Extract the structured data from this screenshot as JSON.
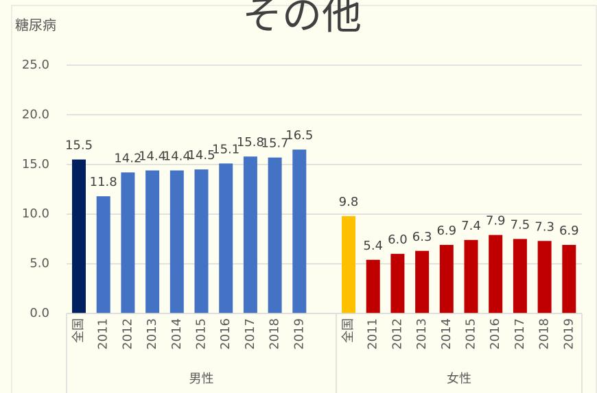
{
  "chart_data": {
    "type": "bar",
    "title": "その他",
    "y_label": "糖尿病",
    "categories": [
      "全国",
      "2011",
      "2012",
      "2013",
      "2014",
      "2015",
      "2016",
      "2017",
      "2018",
      "2019"
    ],
    "series": [
      {
        "name": "男性",
        "colors": [
          "#002060",
          "#4472c4",
          "#4472c4",
          "#4472c4",
          "#4472c4",
          "#4472c4",
          "#4472c4",
          "#4472c4",
          "#4472c4",
          "#4472c4"
        ],
        "values": [
          15.5,
          11.8,
          14.2,
          14.4,
          14.4,
          14.5,
          15.1,
          15.8,
          15.7,
          16.5
        ],
        "value_labels": [
          "15.5",
          "11.8",
          "14.2",
          "14.4",
          "14.4",
          "14.5",
          "15.1",
          "15.8",
          "15.7",
          "16.5"
        ]
      },
      {
        "name": "女性",
        "colors": [
          "#ffc000",
          "#c00000",
          "#c00000",
          "#c00000",
          "#c00000",
          "#c00000",
          "#c00000",
          "#c00000",
          "#c00000",
          "#c00000"
        ],
        "values": [
          9.8,
          5.4,
          6.0,
          6.3,
          6.9,
          7.4,
          7.9,
          7.5,
          7.3,
          6.9
        ],
        "value_labels": [
          "9.8",
          "5.4",
          "6.0",
          "6.3",
          "6.9",
          "7.4",
          "7.9",
          "7.5",
          "7.3",
          "6.9"
        ]
      }
    ],
    "ylim": [
      0,
      25
    ],
    "yticks": [
      {
        "value": 0,
        "label": "0.0"
      },
      {
        "value": 5,
        "label": "5.0"
      },
      {
        "value": 10,
        "label": "10.0"
      },
      {
        "value": 15,
        "label": "15.0"
      },
      {
        "value": 20,
        "label": "20.0"
      },
      {
        "value": 25,
        "label": "25.0"
      }
    ],
    "grid": true
  }
}
